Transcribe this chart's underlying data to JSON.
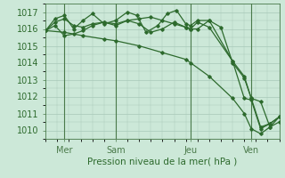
{
  "background_color": "#cce8d8",
  "grid_color": "#a8c8b8",
  "line_color": "#2d6a2d",
  "marker_color": "#2d6a2d",
  "xlabel": "Pression niveau de la mer( hPa )",
  "xlim": [
    0,
    10
  ],
  "ylim": [
    1009.5,
    1017.5
  ],
  "yticks": [
    1010,
    1011,
    1012,
    1013,
    1014,
    1015,
    1016,
    1017
  ],
  "xtick_positions": [
    0.8,
    3.0,
    6.2,
    8.8
  ],
  "xtick_labels": [
    "Mer",
    "Sam",
    "Jeu",
    "Ven"
  ],
  "vlines": [
    0.8,
    3.0,
    6.2,
    8.8
  ],
  "series": [
    {
      "x": [
        0.0,
        0.4,
        0.8,
        1.2,
        1.6,
        2.0,
        2.5,
        3.0,
        3.5,
        4.0,
        4.5,
        5.0,
        5.5,
        6.0,
        6.2,
        6.5,
        7.0,
        7.5,
        8.0,
        8.5,
        8.8,
        9.2,
        9.6,
        10.0
      ],
      "y": [
        1015.9,
        1016.4,
        1016.6,
        1016.2,
        1016.1,
        1016.3,
        1016.4,
        1016.2,
        1016.5,
        1016.3,
        1015.8,
        1016.0,
        1016.4,
        1016.1,
        1016.0,
        1016.0,
        1016.5,
        1016.1,
        1014.0,
        1013.1,
        1011.9,
        1010.2,
        1010.4,
        1010.8
      ]
    },
    {
      "x": [
        0.0,
        0.4,
        0.8,
        1.2,
        1.6,
        2.0,
        2.5,
        3.0,
        3.5,
        3.9,
        4.3,
        4.8,
        5.2,
        5.6,
        6.0,
        6.2,
        6.5,
        7.0,
        8.0,
        8.5,
        8.8,
        9.2,
        9.6,
        10.0
      ],
      "y": [
        1015.9,
        1016.6,
        1016.8,
        1016.0,
        1016.5,
        1016.9,
        1016.3,
        1016.5,
        1017.0,
        1016.8,
        1015.8,
        1016.2,
        1016.9,
        1017.1,
        1016.3,
        1016.2,
        1016.5,
        1016.5,
        1014.1,
        1011.9,
        1011.8,
        1010.1,
        1010.4,
        1010.8
      ]
    },
    {
      "x": [
        0.0,
        0.4,
        0.8,
        1.2,
        1.6,
        2.0,
        2.5,
        3.0,
        3.5,
        4.0,
        4.5,
        5.0,
        5.5,
        6.0,
        6.2,
        6.5,
        7.0,
        8.0,
        8.5,
        8.8,
        9.2,
        9.6,
        10.0
      ],
      "y": [
        1015.9,
        1016.2,
        1015.6,
        1015.7,
        1015.9,
        1016.2,
        1016.4,
        1016.3,
        1016.5,
        1016.6,
        1016.7,
        1016.5,
        1016.3,
        1016.1,
        1016.0,
        1016.4,
        1016.1,
        1014.1,
        1013.2,
        1011.9,
        1011.7,
        1010.2,
        1010.8
      ]
    },
    {
      "x": [
        0.0,
        0.8,
        1.6,
        2.5,
        3.0,
        4.0,
        5.0,
        6.0,
        6.2,
        7.0,
        8.0,
        8.5,
        8.8,
        9.2,
        9.6,
        10.0
      ],
      "y": [
        1015.9,
        1015.8,
        1015.6,
        1015.4,
        1015.3,
        1015.0,
        1014.6,
        1014.2,
        1014.0,
        1013.2,
        1011.9,
        1011.0,
        1010.1,
        1009.8,
        1010.2,
        1010.5
      ]
    }
  ]
}
